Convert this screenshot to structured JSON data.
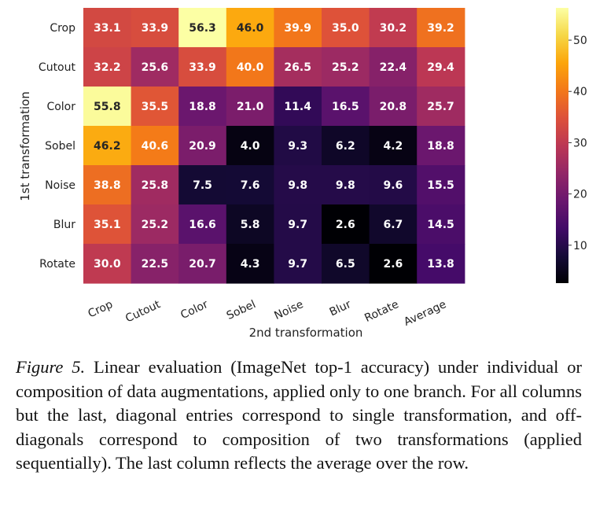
{
  "chart_data": {
    "type": "heatmap",
    "xlabel": "2nd transformation",
    "ylabel": "1st transformation",
    "x_categories": [
      "Crop",
      "Cutout",
      "Color",
      "Sobel",
      "Noise",
      "Blur",
      "Rotate",
      "Average"
    ],
    "y_categories": [
      "Crop",
      "Cutout",
      "Color",
      "Sobel",
      "Noise",
      "Blur",
      "Rotate"
    ],
    "values": [
      [
        "33.1",
        "33.9",
        "56.3",
        "46.0",
        "39.9",
        "35.0",
        "30.2",
        "39.2"
      ],
      [
        "32.2",
        "25.6",
        "33.9",
        "40.0",
        "26.5",
        "25.2",
        "22.4",
        "29.4"
      ],
      [
        "55.8",
        "35.5",
        "18.8",
        "21.0",
        "11.4",
        "16.5",
        "20.8",
        "25.7"
      ],
      [
        "46.2",
        "40.6",
        "20.9",
        "4.0",
        "9.3",
        "6.2",
        "4.2",
        "18.8"
      ],
      [
        "38.8",
        "25.8",
        "7.5",
        "7.6",
        "9.8",
        "9.8",
        "9.6",
        "15.5"
      ],
      [
        "35.1",
        "25.2",
        "16.6",
        "5.8",
        "9.7",
        "2.6",
        "6.7",
        "14.5"
      ],
      [
        "30.0",
        "22.5",
        "20.7",
        "4.3",
        "9.7",
        "6.5",
        "2.6",
        "13.8"
      ]
    ],
    "colormap": "inferno",
    "color_range": [
      2.6,
      56.3
    ],
    "colorbar_ticks": [
      "10",
      "20",
      "30",
      "40",
      "50"
    ]
  },
  "caption": {
    "label": "Figure 5.",
    "text": " Linear evaluation (ImageNet top-1 accuracy) under individual or composition of data augmentations, applied only to one branch. For all columns but the last, diagonal entries correspond to single transformation, and off-diagonals correspond to composition of two transformations (applied sequentially). The last column reflects the average over the row."
  }
}
